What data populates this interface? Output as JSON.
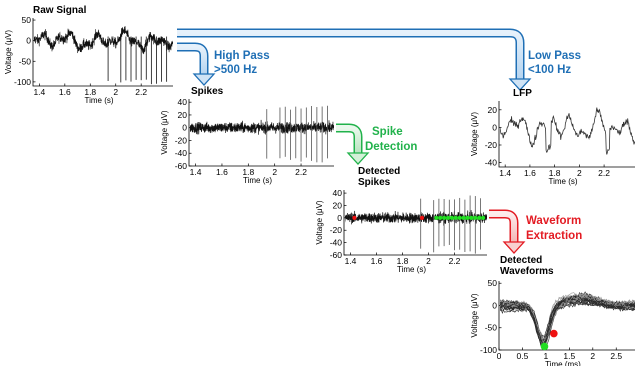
{
  "colors": {
    "blue": "#1f6fb5",
    "green": "#21b24b",
    "red": "#e31b23",
    "trace": "#111111",
    "waveform_gray": "#9a9a9a",
    "spike_dot_green": "#22dd22",
    "spike_dot_red": "#ee1111"
  },
  "steps": {
    "high_pass": [
      "High Pass",
      ">500 Hz"
    ],
    "low_pass": [
      "Low Pass",
      "<100 Hz"
    ],
    "spike_detection": [
      "Spike",
      "Detection"
    ],
    "waveform_extraction": [
      "Waveform",
      "Extraction"
    ]
  },
  "chart_data": [
    {
      "id": "raw",
      "type": "line",
      "title": "Raw Signal",
      "xlabel": "Time (s)",
      "ylabel": "Voltage (μV)",
      "xlim": [
        1.35,
        2.45
      ],
      "ylim": [
        -110,
        55
      ],
      "xticks": [
        "1.4",
        "1.6",
        "1.8",
        "2",
        "2.2"
      ],
      "xtick_values": [
        1.4,
        1.6,
        1.8,
        2.0,
        2.2
      ],
      "yticks": [
        "50",
        "0",
        "-50",
        "-100"
      ],
      "ytick_values": [
        50,
        0,
        -50,
        -100
      ],
      "spike_times": [
        1.94,
        2.04,
        2.08,
        2.12,
        2.16,
        2.2,
        2.24,
        2.28,
        2.32,
        2.36,
        2.4
      ],
      "spike_min": -100
    },
    {
      "id": "spikes",
      "type": "line",
      "title": "Spikes",
      "xlabel": "Time (s)",
      "ylabel": "Voltage (μV)",
      "xlim": [
        1.35,
        2.45
      ],
      "ylim": [
        -60,
        45
      ],
      "xticks": [
        "1.4",
        "1.6",
        "1.8",
        "2",
        "2.2"
      ],
      "xtick_values": [
        1.4,
        1.6,
        1.8,
        2.0,
        2.2
      ],
      "yticks": [
        "40",
        "20",
        "0",
        "-20",
        "-40",
        "-60"
      ],
      "ytick_values": [
        40,
        20,
        0,
        -20,
        -40,
        -60
      ],
      "spike_times": [
        1.94,
        2.04,
        2.08,
        2.12,
        2.16,
        2.2,
        2.24,
        2.28,
        2.32,
        2.36,
        2.4
      ],
      "spike_min": -50
    },
    {
      "id": "lfp",
      "type": "line",
      "title": "LFP",
      "xlabel": "Time (s)",
      "ylabel": "Voltage (μV)",
      "xlim": [
        1.35,
        2.45
      ],
      "ylim": [
        -45,
        30
      ],
      "xticks": [
        "1.4",
        "1.6",
        "1.8",
        "2",
        "2.2"
      ],
      "xtick_values": [
        1.4,
        1.6,
        1.8,
        2.0,
        2.2
      ],
      "yticks": [
        "20",
        "0",
        "-20",
        "-40"
      ],
      "ytick_values": [
        20,
        0,
        -20,
        -40
      ]
    },
    {
      "id": "detected",
      "type": "scatter",
      "title": [
        "Detected",
        "Spikes"
      ],
      "xlabel": "Time (s)",
      "ylabel": "Voltage (μV)",
      "xlim": [
        1.35,
        2.45
      ],
      "ylim": [
        -60,
        45
      ],
      "xticks": [
        "1.4",
        "1.6",
        "1.8",
        "2",
        "2.2"
      ],
      "xtick_values": [
        1.4,
        1.6,
        1.8,
        2.0,
        2.2
      ],
      "yticks": [
        "40",
        "20",
        "0",
        "-20",
        "-40",
        "-60"
      ],
      "ytick_values": [
        40,
        20,
        0,
        -20,
        -40,
        -60
      ],
      "spike_times": [
        1.94,
        2.04,
        2.08,
        2.12,
        2.16,
        2.2,
        2.24,
        2.28,
        2.32,
        2.36,
        2.4
      ],
      "spike_min": -50,
      "red_points": [
        1.43,
        1.95
      ],
      "green_points": [
        2.06,
        2.09,
        2.12,
        2.15,
        2.18,
        2.21,
        2.24,
        2.27,
        2.3,
        2.33,
        2.36,
        2.39,
        2.42
      ]
    },
    {
      "id": "waveforms",
      "type": "line",
      "title": [
        "Detected",
        "Waveforms"
      ],
      "xlabel": "Time (ms)",
      "ylabel": "Voltage (μV)",
      "xlim": [
        0,
        2.9
      ],
      "ylim": [
        -100,
        55
      ],
      "xticks": [
        "0",
        "0.5",
        "1",
        "1.5",
        "2",
        "2.5"
      ],
      "xtick_values": [
        0,
        0.5,
        1,
        1.5,
        2,
        2.5
      ],
      "yticks": [
        "50",
        "0",
        "-50",
        "-100"
      ],
      "ytick_values": [
        50,
        0,
        -50,
        -100
      ],
      "trough_marker": {
        "x": 0.97,
        "y": -92
      },
      "peak_marker": {
        "x": 1.17,
        "y": -63
      }
    }
  ]
}
